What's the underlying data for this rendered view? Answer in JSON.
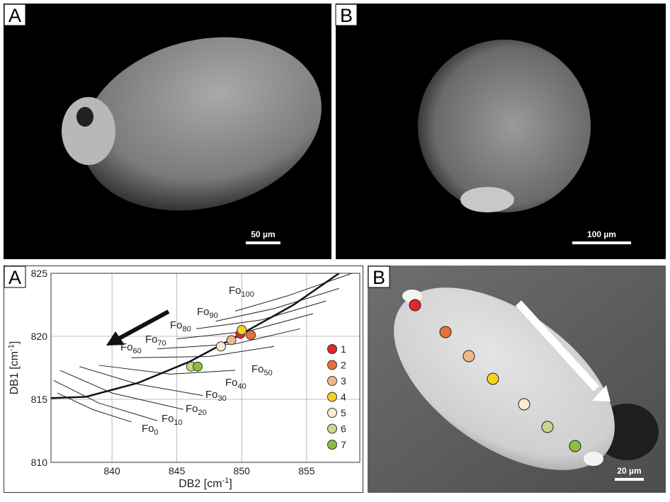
{
  "panels": {
    "top_left": {
      "label": "A",
      "scale": "50 µm"
    },
    "top_right": {
      "label": "B",
      "scale": "100 µm"
    },
    "bottom_left": {
      "label": "A"
    },
    "bottom_right": {
      "label": "B",
      "scale": "20 µm"
    }
  },
  "chart_data": {
    "type": "scatter",
    "x_label": {
      "text": "DB2 [cm",
      "sup": "-1",
      "end": "]"
    },
    "y_label": {
      "text": "DB1 [cm",
      "sup": "-1",
      "end": "]"
    },
    "xlim": [
      835.3,
      859.1
    ],
    "ylim": [
      810,
      825
    ],
    "xticks": [
      840,
      845,
      850,
      855
    ],
    "yticks": [
      810,
      815,
      820,
      825
    ],
    "grid": true,
    "legend": "right",
    "series": [
      {
        "name": "1",
        "color": "#e3262b",
        "x": [
          849.9
        ],
        "values": [
          820.2
        ]
      },
      {
        "name": "2",
        "color": "#e8703a",
        "x": [
          850.7
        ],
        "values": [
          820.1
        ]
      },
      {
        "name": "3",
        "color": "#f2b889",
        "x": [
          849.2
        ],
        "values": [
          819.7
        ]
      },
      {
        "name": "4",
        "color": "#f5d21c",
        "x": [
          850.0
        ],
        "values": [
          820.5
        ]
      },
      {
        "name": "5",
        "color": "#fbeccb",
        "x": [
          848.4
        ],
        "values": [
          819.2
        ]
      },
      {
        "name": "6",
        "color": "#c5d88b",
        "x": [
          846.1
        ],
        "values": [
          817.6
        ]
      },
      {
        "name": "7",
        "color": "#8cbf3f",
        "x": [
          846.6
        ],
        "values": [
          817.6
        ]
      }
    ],
    "curve": {
      "x": [
        835.3,
        838,
        842,
        846,
        850,
        854,
        857.5
      ],
      "y": [
        815.1,
        815.2,
        816.3,
        818,
        820.2,
        822.5,
        825
      ]
    },
    "isolines": [
      {
        "label": "Fo",
        "sub": "0",
        "x": [
          835.8,
          838.5,
          841.5
        ],
        "y": [
          815.5,
          814.2,
          813.2
        ]
      },
      {
        "label": "Fo",
        "sub": "10",
        "x": [
          835.5,
          839,
          843.5
        ],
        "y": [
          816.5,
          814.7,
          813.3
        ]
      },
      {
        "label": "Fo",
        "sub": "20",
        "x": [
          836,
          840,
          845.5
        ],
        "y": [
          817.3,
          815.5,
          814.2
        ]
      },
      {
        "label": "Fo",
        "sub": "30",
        "x": [
          837.5,
          842,
          847
        ],
        "y": [
          817.6,
          816.2,
          815.3
        ]
      },
      {
        "label": "Fo",
        "sub": "40",
        "x": [
          839,
          844.5,
          849.5
        ],
        "y": [
          817.7,
          817,
          817.3
        ]
      },
      {
        "label": "Fo",
        "sub": "50",
        "x": [
          841.5,
          847.5,
          852.5
        ],
        "y": [
          818.3,
          818.4,
          819.2
        ]
      },
      {
        "label": "Fo",
        "sub": "60",
        "x": [
          843.5,
          849.5,
          854.5
        ],
        "y": [
          819,
          819.4,
          820.6
        ]
      },
      {
        "label": "Fo",
        "sub": "70",
        "x": [
          845,
          850.5,
          855.5
        ],
        "y": [
          819.8,
          820.4,
          821.8
        ]
      },
      {
        "label": "Fo",
        "sub": "80",
        "x": [
          846.5,
          851.5,
          856.5
        ],
        "y": [
          820.6,
          821.3,
          822.8
        ]
      },
      {
        "label": "Fo",
        "sub": "90",
        "x": [
          848,
          852.5,
          857.5
        ],
        "y": [
          821.2,
          822.2,
          823.8
        ]
      },
      {
        "label": "Fo",
        "sub": "100",
        "x": [
          849.5,
          853.5,
          858.5
        ],
        "y": [
          822,
          823.2,
          825
        ]
      }
    ]
  }
}
